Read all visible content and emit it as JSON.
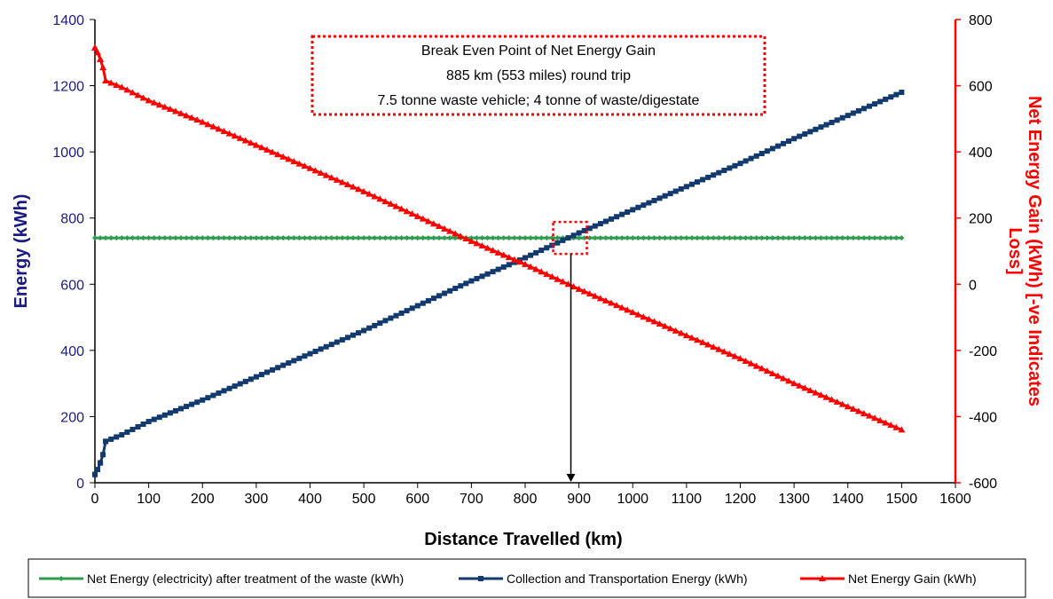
{
  "chart_data": {
    "type": "line",
    "xlabel": "Distance Travelled (km)",
    "ylabel_left": "Energy (kWh)",
    "ylabel_right": "Net Energy Gain (kWh) [-ve Indicates Loss]",
    "xlim": [
      0,
      1600
    ],
    "ylim_left": [
      0,
      1400
    ],
    "ylim_right": [
      -600,
      800
    ],
    "x_ticks": [
      "0",
      "100",
      "200",
      "300",
      "400",
      "500",
      "600",
      "700",
      "800",
      "900",
      "1000",
      "1100",
      "1200",
      "1300",
      "1400",
      "1500",
      "1600"
    ],
    "y_left_ticks": [
      "0",
      "200",
      "400",
      "600",
      "800",
      "1000",
      "1200",
      "1400"
    ],
    "y_right_ticks": [
      "-600",
      "-400",
      "-200",
      "0",
      "200",
      "400",
      "600",
      "800"
    ],
    "grid": false,
    "legend_position": "bottom",
    "annotation": {
      "lines": [
        "Break Even Point of Net Energy Gain",
        "885 km (553 miles) round trip",
        "7.5 tonne waste vehicle; 4 tonne of waste/digestate"
      ],
      "break_even_x": 885,
      "break_even_y_left": 740
    },
    "series": [
      {
        "name": "Net Energy (electricity) after treatment of the waste (kWh)",
        "axis": "left",
        "color": "#2e9b4f",
        "marker": "diamond",
        "x": [
          0,
          1500
        ],
        "y": [
          740,
          740
        ]
      },
      {
        "name": "Collection and Transportation Energy (kWh)",
        "axis": "left",
        "color": "#123a6e",
        "marker": "square",
        "x": [
          0,
          5,
          10,
          15,
          20,
          50,
          100,
          200,
          300,
          400,
          500,
          600,
          700,
          800,
          900,
          1000,
          1100,
          1200,
          1300,
          1400,
          1500
        ],
        "y": [
          25,
          40,
          60,
          85,
          125,
          145,
          185,
          250,
          320,
          390,
          460,
          535,
          610,
          680,
          755,
          825,
          895,
          965,
          1040,
          1110,
          1180
        ]
      },
      {
        "name": "Net Energy Gain (kWh)",
        "axis": "right",
        "color": "#ff0000",
        "marker": "triangle",
        "x": [
          0,
          5,
          10,
          15,
          20,
          50,
          100,
          200,
          300,
          400,
          500,
          600,
          700,
          800,
          900,
          1000,
          1100,
          1200,
          1300,
          1400,
          1500
        ],
        "y": [
          715,
          700,
          680,
          655,
          615,
          595,
          555,
          490,
          420,
          350,
          280,
          205,
          130,
          60,
          -15,
          -85,
          -155,
          -225,
          -300,
          -370,
          -440
        ]
      }
    ]
  }
}
